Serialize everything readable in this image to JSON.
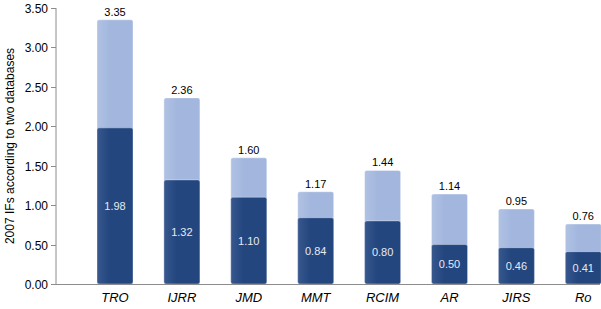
{
  "chart_data": {
    "type": "bar",
    "y_label": "2007 IFs according to two databases",
    "categories": [
      "TRO",
      "IJRR",
      "JMD",
      "MMT",
      "RCIM",
      "AR",
      "JIRS",
      "Ro"
    ],
    "series": [
      {
        "color": "#23467f",
        "values": [
          1.98,
          1.32,
          1.1,
          0.84,
          0.8,
          0.5,
          0.46,
          0.41
        ],
        "value_labels": [
          "1.98",
          "1.32",
          "1.10",
          "0.84",
          "0.80",
          "0.50",
          "0.46",
          "0.41"
        ]
      },
      {
        "color": "#a3b7de",
        "values": [
          3.35,
          2.36,
          1.6,
          1.17,
          1.44,
          1.14,
          0.95,
          0.76
        ],
        "value_labels": [
          "3.35",
          "2.36",
          "1.60",
          "1.17",
          "1.44",
          "1.14",
          "0.95",
          "0.76"
        ]
      }
    ],
    "ylim": [
      0,
      3.5
    ],
    "yticks": [
      {
        "value": 0,
        "label": "0.00"
      },
      {
        "value": 0.5,
        "label": "0.50"
      },
      {
        "value": 1,
        "label": "1.00"
      },
      {
        "value": 1.5,
        "label": "1.50"
      },
      {
        "value": 2,
        "label": "2.00"
      },
      {
        "value": 2.5,
        "label": "2.50"
      },
      {
        "value": 3,
        "label": "3.00"
      },
      {
        "value": 3.5,
        "label": "3.50"
      }
    ],
    "stacked": false,
    "grid": false,
    "data_labels": true
  }
}
